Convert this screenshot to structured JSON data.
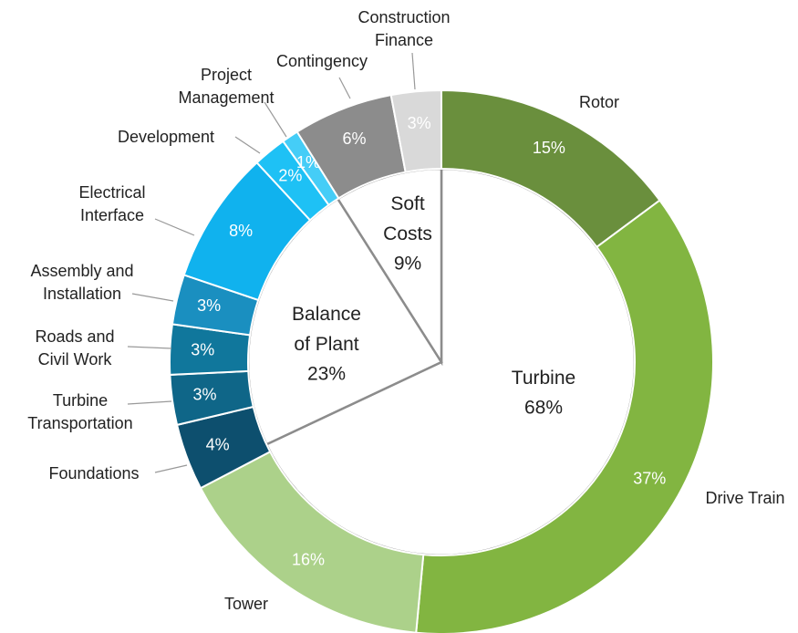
{
  "chart_data": {
    "type": "nested_donut",
    "categories": [
      "Rotor",
      "Drive Train",
      "Tower",
      "Foundations",
      "Turbine Transportation",
      "Roads and Civil Work",
      "Assembly and Installation",
      "Electrical Interface",
      "Development",
      "Project Management",
      "Contingency",
      "Construction Finance"
    ],
    "values": [
      15,
      37,
      16,
      4,
      3,
      3,
      3,
      8,
      2,
      1,
      6,
      3
    ],
    "value_labels": [
      "15%",
      "37%",
      "16%",
      "4%",
      "3%",
      "3%",
      "3%",
      "8%",
      "2%",
      "1%",
      "6%",
      "3%"
    ],
    "colors": [
      "#6a8f3d",
      "#82b541",
      "#acd18a",
      "#0d4f6e",
      "#0f6688",
      "#10779c",
      "#1a8fc0",
      "#10b2ee",
      "#1ec1f5",
      "#45cdf7",
      "#8c8c8c",
      "#d9d9d9"
    ],
    "groups": {
      "categories": [
        "Turbine",
        "Balance of Plant",
        "Soft Costs"
      ],
      "values": [
        68,
        23,
        9
      ],
      "value_labels": [
        "68%",
        "23%",
        "9%"
      ]
    }
  }
}
